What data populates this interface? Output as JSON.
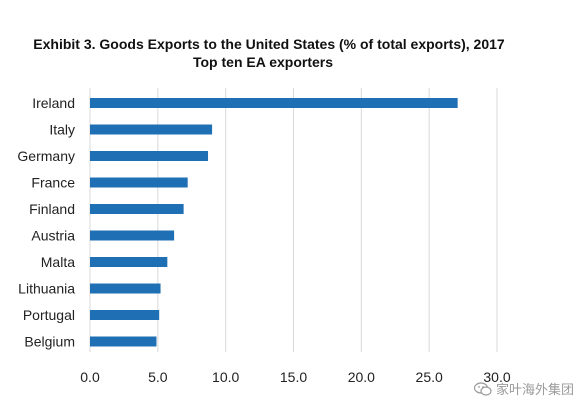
{
  "chart_data": {
    "type": "bar",
    "orientation": "horizontal",
    "title": "Exhibit 3. Goods Exports to the United States (% of total exports), 2017",
    "subtitle": "Top ten EA exporters",
    "categories": [
      "Ireland",
      "Italy",
      "Germany",
      "France",
      "Finland",
      "Austria",
      "Malta",
      "Lithuania",
      "Portugal",
      "Belgium"
    ],
    "values": [
      27.1,
      9.0,
      8.7,
      7.2,
      6.9,
      6.2,
      5.7,
      5.2,
      5.1,
      4.9
    ],
    "xlim": [
      0,
      30
    ],
    "xticks": [
      "0.0",
      "5.0",
      "10.0",
      "15.0",
      "20.0",
      "25.0",
      "30.0"
    ],
    "tick_values": [
      0,
      5,
      10,
      15,
      20,
      25,
      30
    ],
    "xlabel": "",
    "ylabel": "",
    "bar_color": "#1f6fb5",
    "grid": true,
    "grid_color": "#d9d9d9",
    "legend": "none"
  },
  "watermark": {
    "text": "家叶海外集团",
    "icon": "wechat-icon"
  }
}
